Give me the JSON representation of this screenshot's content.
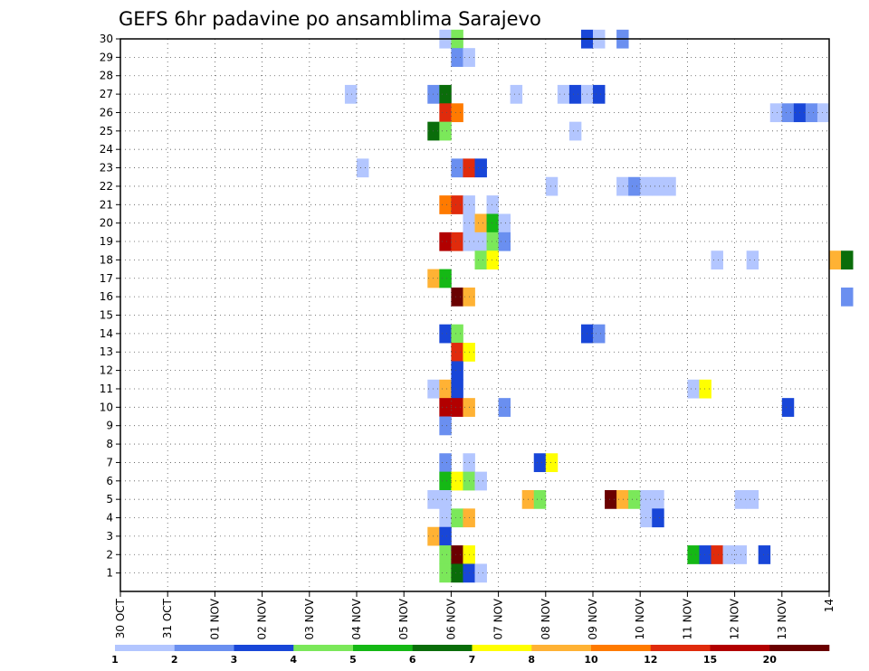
{
  "chart_data": {
    "type": "heatmap",
    "title": "GEFS 6hr padavine po ansamblima Sarajevo",
    "y_labels": [
      "1",
      "2",
      "3",
      "4",
      "5",
      "6",
      "7",
      "8",
      "9",
      "10",
      "11",
      "12",
      "13",
      "14",
      "15",
      "16",
      "17",
      "18",
      "19",
      "20",
      "21",
      "22",
      "23",
      "24",
      "25",
      "26",
      "27",
      "28",
      "29",
      "30"
    ],
    "x_labels": [
      "30 OCT",
      "31 OCT",
      "01 NOV",
      "02 NOV",
      "03 NOV",
      "04 NOV",
      "05 NOV",
      "06 NOV",
      "07 NOV",
      "08 NOV",
      "09 NOV",
      "10 NOV",
      "11 NOV",
      "12 NOV",
      "13 NOV",
      "14"
    ],
    "x_unit": "day",
    "steps_per_day": 4,
    "grid": true,
    "legend": {
      "placement": "bottom",
      "colors": [
        "#b3c6ff",
        "#6a8ff0",
        "#1846d8",
        "#7be85a",
        "#15b815",
        "#0a6d0a",
        "#ffff00",
        "#ffb234",
        "#ff7a00",
        "#e02b0c",
        "#b20000",
        "#6a0000"
      ],
      "labels": [
        "1",
        "2",
        "3",
        "4",
        "5",
        "6",
        "7",
        "8",
        "10",
        "12",
        "15",
        "20"
      ]
    },
    "cells": [
      {
        "member": 30,
        "t": 27,
        "c": 0
      },
      {
        "member": 30,
        "t": 28,
        "c": 3
      },
      {
        "member": 30,
        "t": 39,
        "c": 2
      },
      {
        "member": 30,
        "t": 40,
        "c": 0
      },
      {
        "member": 30,
        "t": 42,
        "c": 1
      },
      {
        "member": 29,
        "t": 28,
        "c": 1
      },
      {
        "member": 29,
        "t": 29,
        "c": 0
      },
      {
        "member": 27,
        "t": 19,
        "c": 0
      },
      {
        "member": 27,
        "t": 26,
        "c": 1
      },
      {
        "member": 27,
        "t": 27,
        "c": 5
      },
      {
        "member": 27,
        "t": 33,
        "c": 0
      },
      {
        "member": 27,
        "t": 37,
        "c": 0
      },
      {
        "member": 27,
        "t": 38,
        "c": 2
      },
      {
        "member": 27,
        "t": 39,
        "c": 0
      },
      {
        "member": 27,
        "t": 40,
        "c": 2
      },
      {
        "member": 26,
        "t": 27,
        "c": 9
      },
      {
        "member": 26,
        "t": 28,
        "c": 8
      },
      {
        "member": 26,
        "t": 55,
        "c": 0
      },
      {
        "member": 26,
        "t": 56,
        "c": 1
      },
      {
        "member": 26,
        "t": 57,
        "c": 2
      },
      {
        "member": 26,
        "t": 58,
        "c": 1
      },
      {
        "member": 26,
        "t": 59,
        "c": 0
      },
      {
        "member": 25,
        "t": 26,
        "c": 5
      },
      {
        "member": 25,
        "t": 27,
        "c": 3
      },
      {
        "member": 25,
        "t": 38,
        "c": 0
      },
      {
        "member": 23,
        "t": 20,
        "c": 0
      },
      {
        "member": 23,
        "t": 28,
        "c": 1
      },
      {
        "member": 23,
        "t": 29,
        "c": 9
      },
      {
        "member": 23,
        "t": 30,
        "c": 2
      },
      {
        "member": 22,
        "t": 36,
        "c": 0
      },
      {
        "member": 22,
        "t": 42,
        "c": 0
      },
      {
        "member": 22,
        "t": 43,
        "c": 1
      },
      {
        "member": 22,
        "t": 44,
        "c": 0
      },
      {
        "member": 22,
        "t": 45,
        "c": 0
      },
      {
        "member": 22,
        "t": 46,
        "c": 0
      },
      {
        "member": 21,
        "t": 27,
        "c": 8
      },
      {
        "member": 21,
        "t": 28,
        "c": 9
      },
      {
        "member": 21,
        "t": 29,
        "c": 0
      },
      {
        "member": 21,
        "t": 31,
        "c": 0
      },
      {
        "member": 20,
        "t": 29,
        "c": 0
      },
      {
        "member": 20,
        "t": 30,
        "c": 7
      },
      {
        "member": 20,
        "t": 31,
        "c": 4
      },
      {
        "member": 20,
        "t": 32,
        "c": 0
      },
      {
        "member": 19,
        "t": 27,
        "c": 10
      },
      {
        "member": 19,
        "t": 28,
        "c": 9
      },
      {
        "member": 19,
        "t": 29,
        "c": 0
      },
      {
        "member": 19,
        "t": 30,
        "c": 0
      },
      {
        "member": 19,
        "t": 31,
        "c": 3
      },
      {
        "member": 19,
        "t": 32,
        "c": 1
      },
      {
        "member": 18,
        "t": 30,
        "c": 3
      },
      {
        "member": 18,
        "t": 31,
        "c": 6
      },
      {
        "member": 18,
        "t": 50,
        "c": 0
      },
      {
        "member": 18,
        "t": 53,
        "c": 0
      },
      {
        "member": 18,
        "t": 60,
        "c": 7
      },
      {
        "member": 18,
        "t": 61,
        "c": 5
      },
      {
        "member": 17,
        "t": 26,
        "c": 7
      },
      {
        "member": 17,
        "t": 27,
        "c": 4
      },
      {
        "member": 16,
        "t": 28,
        "c": 11
      },
      {
        "member": 16,
        "t": 29,
        "c": 7
      },
      {
        "member": 16,
        "t": 61,
        "c": 1
      },
      {
        "member": 14,
        "t": 27,
        "c": 2
      },
      {
        "member": 14,
        "t": 28,
        "c": 3
      },
      {
        "member": 14,
        "t": 39,
        "c": 2
      },
      {
        "member": 14,
        "t": 40,
        "c": 1
      },
      {
        "member": 13,
        "t": 28,
        "c": 9
      },
      {
        "member": 13,
        "t": 29,
        "c": 6
      },
      {
        "member": 12,
        "t": 28,
        "c": 2
      },
      {
        "member": 11,
        "t": 26,
        "c": 0
      },
      {
        "member": 11,
        "t": 27,
        "c": 7
      },
      {
        "member": 11,
        "t": 28,
        "c": 2
      },
      {
        "member": 11,
        "t": 48,
        "c": 0
      },
      {
        "member": 11,
        "t": 49,
        "c": 6
      },
      {
        "member": 10,
        "t": 27,
        "c": 10
      },
      {
        "member": 10,
        "t": 28,
        "c": 10
      },
      {
        "member": 10,
        "t": 29,
        "c": 7
      },
      {
        "member": 10,
        "t": 32,
        "c": 1
      },
      {
        "member": 10,
        "t": 56,
        "c": 2
      },
      {
        "member": 9,
        "t": 27,
        "c": 1
      },
      {
        "member": 7,
        "t": 27,
        "c": 1
      },
      {
        "member": 7,
        "t": 29,
        "c": 0
      },
      {
        "member": 7,
        "t": 35,
        "c": 2
      },
      {
        "member": 7,
        "t": 36,
        "c": 6
      },
      {
        "member": 6,
        "t": 27,
        "c": 4
      },
      {
        "member": 6,
        "t": 28,
        "c": 6
      },
      {
        "member": 6,
        "t": 29,
        "c": 3
      },
      {
        "member": 6,
        "t": 30,
        "c": 0
      },
      {
        "member": 5,
        "t": 26,
        "c": 0
      },
      {
        "member": 5,
        "t": 27,
        "c": 0
      },
      {
        "member": 5,
        "t": 34,
        "c": 7
      },
      {
        "member": 5,
        "t": 35,
        "c": 3
      },
      {
        "member": 5,
        "t": 41,
        "c": 11
      },
      {
        "member": 5,
        "t": 42,
        "c": 7
      },
      {
        "member": 5,
        "t": 43,
        "c": 3
      },
      {
        "member": 5,
        "t": 44,
        "c": 0
      },
      {
        "member": 5,
        "t": 45,
        "c": 0
      },
      {
        "member": 5,
        "t": 52,
        "c": 0
      },
      {
        "member": 5,
        "t": 53,
        "c": 0
      },
      {
        "member": 4,
        "t": 27,
        "c": 0
      },
      {
        "member": 4,
        "t": 28,
        "c": 3
      },
      {
        "member": 4,
        "t": 29,
        "c": 7
      },
      {
        "member": 4,
        "t": 44,
        "c": 0
      },
      {
        "member": 4,
        "t": 45,
        "c": 2
      },
      {
        "member": 3,
        "t": 26,
        "c": 7
      },
      {
        "member": 3,
        "t": 27,
        "c": 2
      },
      {
        "member": 2,
        "t": 27,
        "c": 3
      },
      {
        "member": 2,
        "t": 28,
        "c": 11
      },
      {
        "member": 2,
        "t": 29,
        "c": 6
      },
      {
        "member": 2,
        "t": 48,
        "c": 4
      },
      {
        "member": 2,
        "t": 49,
        "c": 2
      },
      {
        "member": 2,
        "t": 50,
        "c": 9
      },
      {
        "member": 2,
        "t": 51,
        "c": 0
      },
      {
        "member": 2,
        "t": 52,
        "c": 0
      },
      {
        "member": 2,
        "t": 54,
        "c": 2
      },
      {
        "member": 1,
        "t": 27,
        "c": 3
      },
      {
        "member": 1,
        "t": 28,
        "c": 5
      },
      {
        "member": 1,
        "t": 29,
        "c": 2
      },
      {
        "member": 1,
        "t": 30,
        "c": 0
      }
    ]
  }
}
